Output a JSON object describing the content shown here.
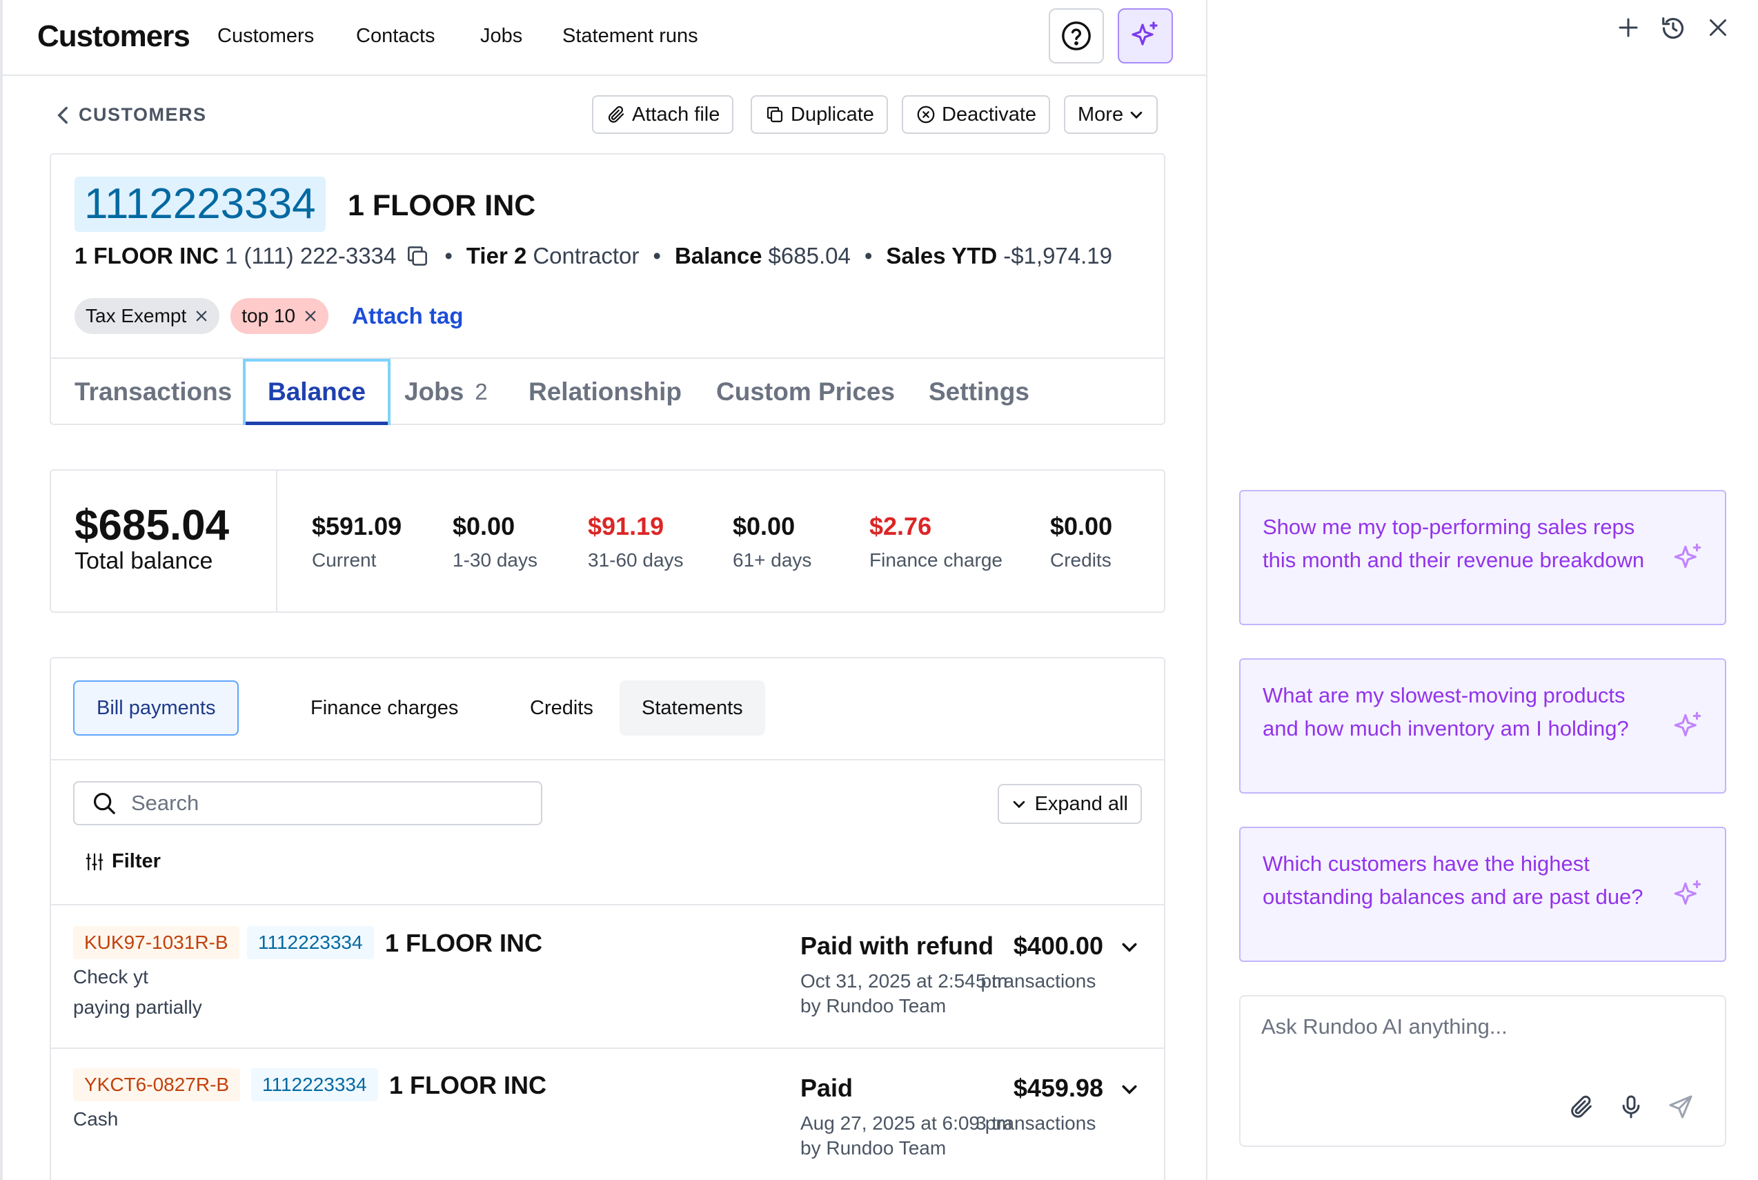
{
  "topnav": {
    "app_title": "Customers",
    "links": [
      "Customers",
      "Contacts",
      "Jobs",
      "Statement runs"
    ]
  },
  "breadcrumb": {
    "back_label": "CUSTOMERS"
  },
  "actions": {
    "attach_file": "Attach file",
    "duplicate": "Duplicate",
    "deactivate": "Deactivate",
    "more": "More"
  },
  "customer": {
    "number": "1112223334",
    "name": "1 FLOOR INC",
    "contact_name": "1 FLOOR INC",
    "phone": "1 (111) 222-3334",
    "tier_label": "Tier 2",
    "tier_value": "Contractor",
    "balance_label": "Balance",
    "balance_value": "$685.04",
    "sales_label": "Sales YTD",
    "sales_value": "-$1,974.19",
    "tags": [
      {
        "label": "Tax Exempt",
        "color": "#e5e7eb"
      },
      {
        "label": "top 10",
        "color": "#fecaca"
      }
    ],
    "attach_tag": "Attach tag"
  },
  "tabs": [
    {
      "label": "Transactions"
    },
    {
      "label": "Balance",
      "active": true
    },
    {
      "label": "Jobs",
      "count": "2"
    },
    {
      "label": "Relationship"
    },
    {
      "label": "Custom Prices"
    },
    {
      "label": "Settings"
    }
  ],
  "balance": {
    "total_amount": "$685.04",
    "total_label": "Total balance",
    "buckets": [
      {
        "value": "$591.09",
        "label": "Current"
      },
      {
        "value": "$0.00",
        "label": "1-30 days"
      },
      {
        "value": "$91.19",
        "label": "31-60 days",
        "alert": true
      },
      {
        "value": "$0.00",
        "label": "61+ days"
      },
      {
        "value": "$2.76",
        "label": "Finance charge",
        "alert": true
      },
      {
        "value": "$0.00",
        "label": "Credits"
      }
    ]
  },
  "subtabs": [
    "Bill payments",
    "Finance charges",
    "Credits",
    "Statements"
  ],
  "search": {
    "placeholder": "Search"
  },
  "expand_all": "Expand all",
  "filter_label": "Filter",
  "transactions": [
    {
      "ref": "KUK97-1031R-B",
      "customer_number": "1112223334",
      "customer_name": "1 FLOOR INC",
      "note1": "Check yt",
      "note2": "paying partially",
      "status": "Paid with refund",
      "amount": "$400.00",
      "date": "Oct 31, 2025 at 2:54 pm",
      "tx_count": "5 transactions",
      "by": "by Rundoo Team"
    },
    {
      "ref": "YKCT6-0827R-B",
      "customer_number": "1112223334",
      "customer_name": "1 FLOOR INC",
      "note1": "Cash",
      "note2": "",
      "status": "Paid",
      "amount": "$459.98",
      "date": "Aug 27, 2025 at 6:09 pm",
      "tx_count": "3 transactions",
      "by": "by Rundoo Team"
    }
  ],
  "ai_panel": {
    "suggestions": [
      "Show me my top-performing sales reps this month and their revenue breakdown",
      "What are my slowest-moving products and how much inventory am I holding?",
      "Which customers have the highest outstanding balances and are past due?"
    ],
    "input_placeholder": "Ask Rundoo AI anything..."
  },
  "colors": {
    "accent_blue": "#1e40af",
    "link_blue": "#1d4ed8",
    "alert_red": "#dc2626",
    "ai_purple": "#9333ea",
    "ai_bg": "#f5f3ff"
  },
  "icons": [
    "help-icon",
    "sparkle-icon",
    "chevron-left-icon",
    "paperclip-icon",
    "copy-icon",
    "x-circle-icon",
    "chevron-down-icon",
    "close-icon",
    "search-icon",
    "filter-icon",
    "plus-icon",
    "history-icon",
    "microphone-icon",
    "send-icon"
  ]
}
